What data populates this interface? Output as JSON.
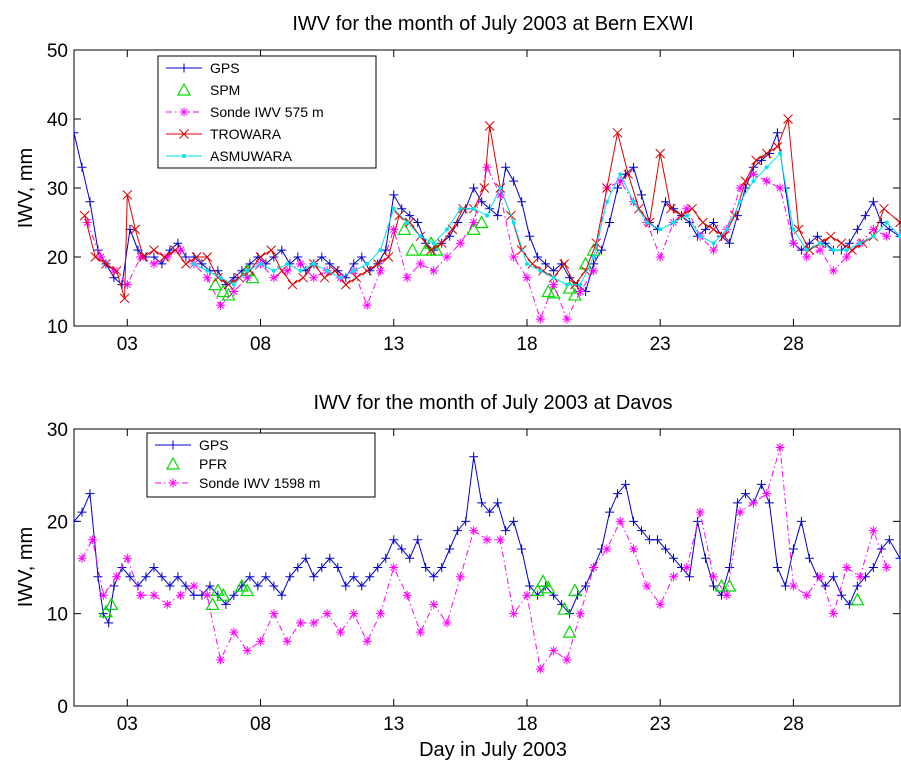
{
  "colors": {
    "gps": "#0000cc",
    "spm": "#00dd00",
    "sonde": "#ff00ff",
    "trowara": "#dd0000",
    "asmuwara": "#00e5ee"
  },
  "chart_data": [
    {
      "type": "line",
      "title": "IWV for the month of July 2003 at Bern EXWI",
      "xlabel": "",
      "ylabel": "IWV, mm",
      "xlim": [
        1,
        32
      ],
      "ylim": [
        10,
        50
      ],
      "xticks": [
        3,
        8,
        13,
        18,
        23,
        28
      ],
      "xtick_labels": [
        "03",
        "08",
        "13",
        "18",
        "23",
        "28"
      ],
      "yticks": [
        10,
        20,
        30,
        40,
        50
      ],
      "ytick_labels": [
        "10",
        "20",
        "30",
        "40",
        "50"
      ],
      "legend_position": "top-left",
      "series": [
        {
          "name": "GPS",
          "key": "gps",
          "marker": "plus",
          "line": "solid",
          "x": [
            1.0,
            1.3,
            1.6,
            1.9,
            2.2,
            2.5,
            2.8,
            3.1,
            3.4,
            3.7,
            4.0,
            4.3,
            4.6,
            4.9,
            5.2,
            5.5,
            5.8,
            6.1,
            6.4,
            6.7,
            7.0,
            7.3,
            7.6,
            7.9,
            8.2,
            8.5,
            8.8,
            9.1,
            9.4,
            9.7,
            10.0,
            10.3,
            10.6,
            10.9,
            11.2,
            11.5,
            11.8,
            12.1,
            12.4,
            12.7,
            13.0,
            13.3,
            13.6,
            13.9,
            14.2,
            14.5,
            14.8,
            15.1,
            15.4,
            15.7,
            16.0,
            16.3,
            16.6,
            16.9,
            17.2,
            17.5,
            17.8,
            18.1,
            18.4,
            18.7,
            19.0,
            19.3,
            19.6,
            19.9,
            20.2,
            20.5,
            20.8,
            21.1,
            21.4,
            21.7,
            22.0,
            22.3,
            22.6,
            22.9,
            23.2,
            23.5,
            23.8,
            24.1,
            24.4,
            24.7,
            25.0,
            25.3,
            25.6,
            25.9,
            26.2,
            26.5,
            26.8,
            27.1,
            27.4,
            27.7,
            28.0,
            28.3,
            28.6,
            28.9,
            29.2,
            29.5,
            29.8,
            30.1,
            30.4,
            30.7,
            31.0,
            31.3,
            31.6,
            32.0
          ],
          "y": [
            38,
            33,
            28,
            21,
            19,
            17,
            16,
            24,
            21,
            20,
            20,
            19,
            21,
            22,
            20,
            20,
            19,
            18,
            18,
            16,
            17,
            18,
            19,
            20,
            19,
            20,
            21,
            19,
            20,
            18,
            19,
            20,
            19,
            18,
            17,
            19,
            20,
            18,
            19,
            21,
            29,
            27,
            26,
            25,
            22,
            21,
            22,
            23,
            25,
            27,
            30,
            28,
            27,
            26,
            33,
            31,
            28,
            23,
            20,
            19,
            18,
            19,
            17,
            16,
            15,
            19,
            21,
            25,
            30,
            32,
            33,
            29,
            25,
            24,
            28,
            27,
            26,
            25,
            23,
            24,
            25,
            23,
            22,
            26,
            30,
            33,
            34,
            35,
            38,
            30,
            22,
            21,
            22,
            23,
            22,
            21,
            21,
            22,
            24,
            26,
            28,
            25,
            24,
            23
          ]
        },
        {
          "name": "SPM",
          "key": "spm",
          "marker": "triangle",
          "line": "none",
          "x": [
            6.3,
            6.6,
            6.8,
            7.5,
            7.7,
            13.4,
            13.7,
            14.2,
            14.4,
            14.6,
            16.0,
            16.3,
            18.8,
            19.0,
            19.6,
            19.8,
            20.2,
            20.5
          ],
          "y": [
            16,
            15,
            14.5,
            18,
            17,
            24,
            21,
            21,
            22,
            21,
            24,
            25,
            15,
            14.8,
            15.5,
            14.5,
            19,
            21
          ]
        },
        {
          "name": "Sonde IWV 575 m",
          "key": "sonde",
          "marker": "star",
          "line": "dashdot",
          "x": [
            1.5,
            2.0,
            2.5,
            3.0,
            3.5,
            4.0,
            4.5,
            5.0,
            5.5,
            6.0,
            6.5,
            7.0,
            7.5,
            8.0,
            8.5,
            9.0,
            9.5,
            10.0,
            10.5,
            11.0,
            11.5,
            12.0,
            12.5,
            13.0,
            13.5,
            14.0,
            14.5,
            15.0,
            15.5,
            16.0,
            16.5,
            17.0,
            17.5,
            18.0,
            18.5,
            19.0,
            19.5,
            20.0,
            20.5,
            21.0,
            21.5,
            22.0,
            22.5,
            23.0,
            23.5,
            24.0,
            24.5,
            25.0,
            25.5,
            26.0,
            26.5,
            27.0,
            27.5,
            28.0,
            28.5,
            29.0,
            29.5,
            30.0,
            30.5,
            31.0,
            31.5
          ],
          "y": [
            25,
            20,
            18,
            16,
            20,
            19,
            20,
            21,
            19,
            17,
            13,
            15,
            17,
            19,
            17,
            18,
            19,
            17,
            18,
            17,
            18,
            13,
            18,
            24,
            17,
            19,
            18,
            20,
            22,
            25,
            33,
            29,
            20,
            17,
            11,
            16,
            11,
            15,
            18,
            30,
            31,
            28,
            25,
            20,
            25,
            27,
            23,
            21,
            24,
            30,
            32,
            31,
            30,
            22,
            20,
            21,
            18,
            20,
            22,
            24,
            23
          ]
        },
        {
          "name": "TROWARA",
          "key": "trowara",
          "marker": "x",
          "line": "solid",
          "x": [
            1.4,
            1.8,
            2.2,
            2.6,
            2.9,
            3.0,
            3.3,
            3.6,
            4.0,
            4.4,
            4.8,
            5.2,
            5.6,
            6.0,
            6.4,
            6.8,
            7.2,
            7.6,
            8.0,
            8.4,
            8.8,
            9.2,
            9.6,
            10.0,
            10.4,
            10.8,
            11.2,
            11.6,
            12.0,
            12.4,
            12.8,
            13.2,
            13.6,
            14.0,
            14.4,
            14.8,
            15.2,
            15.6,
            16.0,
            16.4,
            16.6,
            17.0,
            17.4,
            17.8,
            18.2,
            18.6,
            19.0,
            19.4,
            19.8,
            20.2,
            20.6,
            21.0,
            21.4,
            21.8,
            22.2,
            22.6,
            23.0,
            23.4,
            23.8,
            24.2,
            24.6,
            25.0,
            25.4,
            25.8,
            26.2,
            26.6,
            27.0,
            27.4,
            27.8,
            28.2,
            28.6,
            29.0,
            29.4,
            29.8,
            30.2,
            30.6,
            31.0,
            31.4,
            32.0
          ],
          "y": [
            26,
            20,
            19,
            18,
            14,
            29,
            24,
            20,
            21,
            20,
            21,
            19,
            20,
            20,
            17,
            16,
            17,
            18,
            20,
            21,
            18,
            16,
            17,
            19,
            17,
            18,
            16,
            17,
            18,
            19,
            20,
            26,
            25,
            23,
            21,
            22,
            24,
            27,
            27,
            30,
            39,
            30,
            26,
            21,
            19,
            18,
            17,
            19,
            16,
            18,
            22,
            30,
            38,
            32,
            27,
            25,
            35,
            27,
            26,
            27,
            25,
            24,
            23,
            26,
            31,
            34,
            35,
            36,
            40,
            24,
            21,
            22,
            23,
            22,
            21,
            22,
            23,
            27,
            25
          ]
        },
        {
          "name": "ASMUWARA",
          "key": "asmuwara",
          "marker": "dot",
          "line": "solid",
          "x": [
            5.5,
            6.0,
            6.5,
            7.0,
            7.5,
            8.0,
            8.5,
            9.0,
            9.5,
            10.0,
            10.5,
            11.0,
            11.5,
            12.0,
            12.5,
            13.0,
            13.5,
            14.0,
            14.5,
            15.0,
            15.5,
            16.0,
            16.5,
            17.0,
            17.5,
            18.0,
            18.5,
            19.0,
            19.5,
            20.0,
            20.5,
            21.0,
            21.5,
            22.0,
            22.5,
            23.0,
            23.5,
            24.0,
            24.5,
            25.0,
            25.5,
            26.0,
            26.5,
            27.0,
            27.5,
            28.0,
            28.5,
            29.0,
            29.5,
            30.0,
            30.5,
            31.0,
            31.5,
            32.0
          ],
          "y": [
            19,
            18,
            17,
            16,
            18,
            19,
            18,
            19,
            18,
            19,
            18,
            17,
            18,
            19,
            21,
            27,
            25,
            23,
            22,
            24,
            27,
            27,
            26,
            30,
            25,
            19,
            18,
            17,
            16,
            16,
            20,
            28,
            32,
            28,
            25,
            24,
            25,
            26,
            23,
            22,
            24,
            28,
            31,
            33,
            35,
            24,
            21,
            22,
            21,
            21,
            22,
            23,
            25,
            23
          ]
        }
      ]
    },
    {
      "type": "line",
      "title": "IWV for the month of July 2003 at Davos",
      "xlabel": "Day in July 2003",
      "ylabel": "IWV, mm",
      "xlim": [
        1,
        32
      ],
      "ylim": [
        0,
        30
      ],
      "xticks": [
        3,
        8,
        13,
        18,
        23,
        28
      ],
      "xtick_labels": [
        "03",
        "08",
        "13",
        "18",
        "23",
        "28"
      ],
      "yticks": [
        0,
        10,
        20,
        30
      ],
      "ytick_labels": [
        "0",
        "10",
        "20",
        "30"
      ],
      "legend_position": "top-left",
      "series": [
        {
          "name": "GPS",
          "key": "gps",
          "marker": "plus",
          "line": "solid",
          "x": [
            1.0,
            1.3,
            1.6,
            1.9,
            2.1,
            2.3,
            2.5,
            2.8,
            3.1,
            3.4,
            3.7,
            4.0,
            4.3,
            4.6,
            4.9,
            5.2,
            5.5,
            5.8,
            6.1,
            6.4,
            6.7,
            7.0,
            7.3,
            7.6,
            7.9,
            8.2,
            8.5,
            8.8,
            9.1,
            9.4,
            9.7,
            10.0,
            10.3,
            10.6,
            10.9,
            11.2,
            11.5,
            11.8,
            12.1,
            12.4,
            12.7,
            13.0,
            13.3,
            13.6,
            13.9,
            14.2,
            14.5,
            14.8,
            15.1,
            15.4,
            15.7,
            16.0,
            16.3,
            16.6,
            16.9,
            17.2,
            17.5,
            17.8,
            18.1,
            18.4,
            18.7,
            19.0,
            19.3,
            19.6,
            19.9,
            20.2,
            20.5,
            20.8,
            21.1,
            21.4,
            21.7,
            22.0,
            22.3,
            22.6,
            22.9,
            23.2,
            23.5,
            23.8,
            24.1,
            24.4,
            24.7,
            25.0,
            25.3,
            25.6,
            25.9,
            26.2,
            26.5,
            26.8,
            27.1,
            27.4,
            27.7,
            28.0,
            28.3,
            28.6,
            28.9,
            29.2,
            29.5,
            29.8,
            30.1,
            30.4,
            30.7,
            31.0,
            31.3,
            31.6,
            32.0
          ],
          "y": [
            20,
            21,
            23,
            14,
            10,
            9,
            13,
            15,
            14,
            13,
            14,
            15,
            14,
            13,
            14,
            13,
            12,
            12,
            13,
            12,
            11,
            12,
            13,
            14,
            13,
            14,
            13,
            12,
            14,
            15,
            16,
            14,
            15,
            16,
            15,
            13,
            14,
            13,
            14,
            15,
            16,
            18,
            17,
            16,
            18,
            15,
            14,
            15,
            17,
            19,
            20,
            27,
            22,
            21,
            22,
            19,
            20,
            17,
            13,
            12,
            13,
            12,
            11,
            10,
            12,
            13,
            15,
            17,
            21,
            23,
            24,
            20,
            19,
            18,
            18,
            17,
            16,
            15,
            14,
            20,
            16,
            13,
            12,
            15,
            22,
            23,
            22,
            24,
            22,
            15,
            13,
            17,
            20,
            16,
            14,
            13,
            14,
            12,
            11,
            13,
            14,
            15,
            17,
            18,
            16
          ]
        },
        {
          "name": "PFR",
          "key": "spm",
          "marker": "triangle",
          "line": "none",
          "x": [
            2.2,
            2.4,
            6.2,
            6.4,
            6.6,
            7.3,
            7.5,
            18.4,
            18.6,
            18.8,
            19.4,
            19.6,
            19.8,
            25.3,
            25.6,
            30.4
          ],
          "y": [
            10.2,
            11,
            11,
            12.5,
            12,
            13,
            12.5,
            12.5,
            13.5,
            12.8,
            10.5,
            8,
            12.5,
            13,
            13,
            11.5
          ]
        },
        {
          "name": "Sonde IWV 1598 m",
          "key": "sonde",
          "marker": "star",
          "line": "dashdot",
          "x": [
            1.3,
            1.7,
            2.1,
            2.6,
            3.0,
            3.5,
            4.0,
            4.5,
            5.0,
            5.5,
            6.0,
            6.5,
            7.0,
            7.5,
            8.0,
            8.5,
            9.0,
            9.5,
            10.0,
            10.5,
            11.0,
            11.5,
            12.0,
            12.5,
            13.0,
            13.5,
            14.0,
            14.5,
            15.0,
            15.5,
            16.0,
            16.5,
            17.0,
            17.5,
            18.0,
            18.5,
            19.0,
            19.5,
            20.0,
            20.5,
            21.0,
            21.5,
            22.0,
            22.5,
            23.0,
            23.5,
            24.0,
            24.5,
            25.0,
            25.5,
            26.0,
            26.5,
            27.0,
            27.5,
            28.0,
            28.5,
            29.0,
            29.5,
            30.0,
            30.5,
            31.0,
            31.5
          ],
          "y": [
            16,
            18,
            12,
            14,
            16,
            12,
            12,
            11,
            12,
            13,
            12,
            5,
            8,
            6,
            7,
            10,
            7,
            9,
            9,
            10,
            8,
            10,
            7,
            10,
            15,
            12,
            8,
            11,
            9,
            14,
            19,
            18,
            18,
            10,
            12,
            4,
            6,
            5,
            10,
            15,
            17,
            20,
            17,
            13,
            11,
            14,
            15,
            21,
            14,
            12,
            21,
            22,
            23,
            28,
            13,
            12,
            14,
            10,
            15,
            14,
            19,
            15
          ]
        }
      ]
    }
  ]
}
